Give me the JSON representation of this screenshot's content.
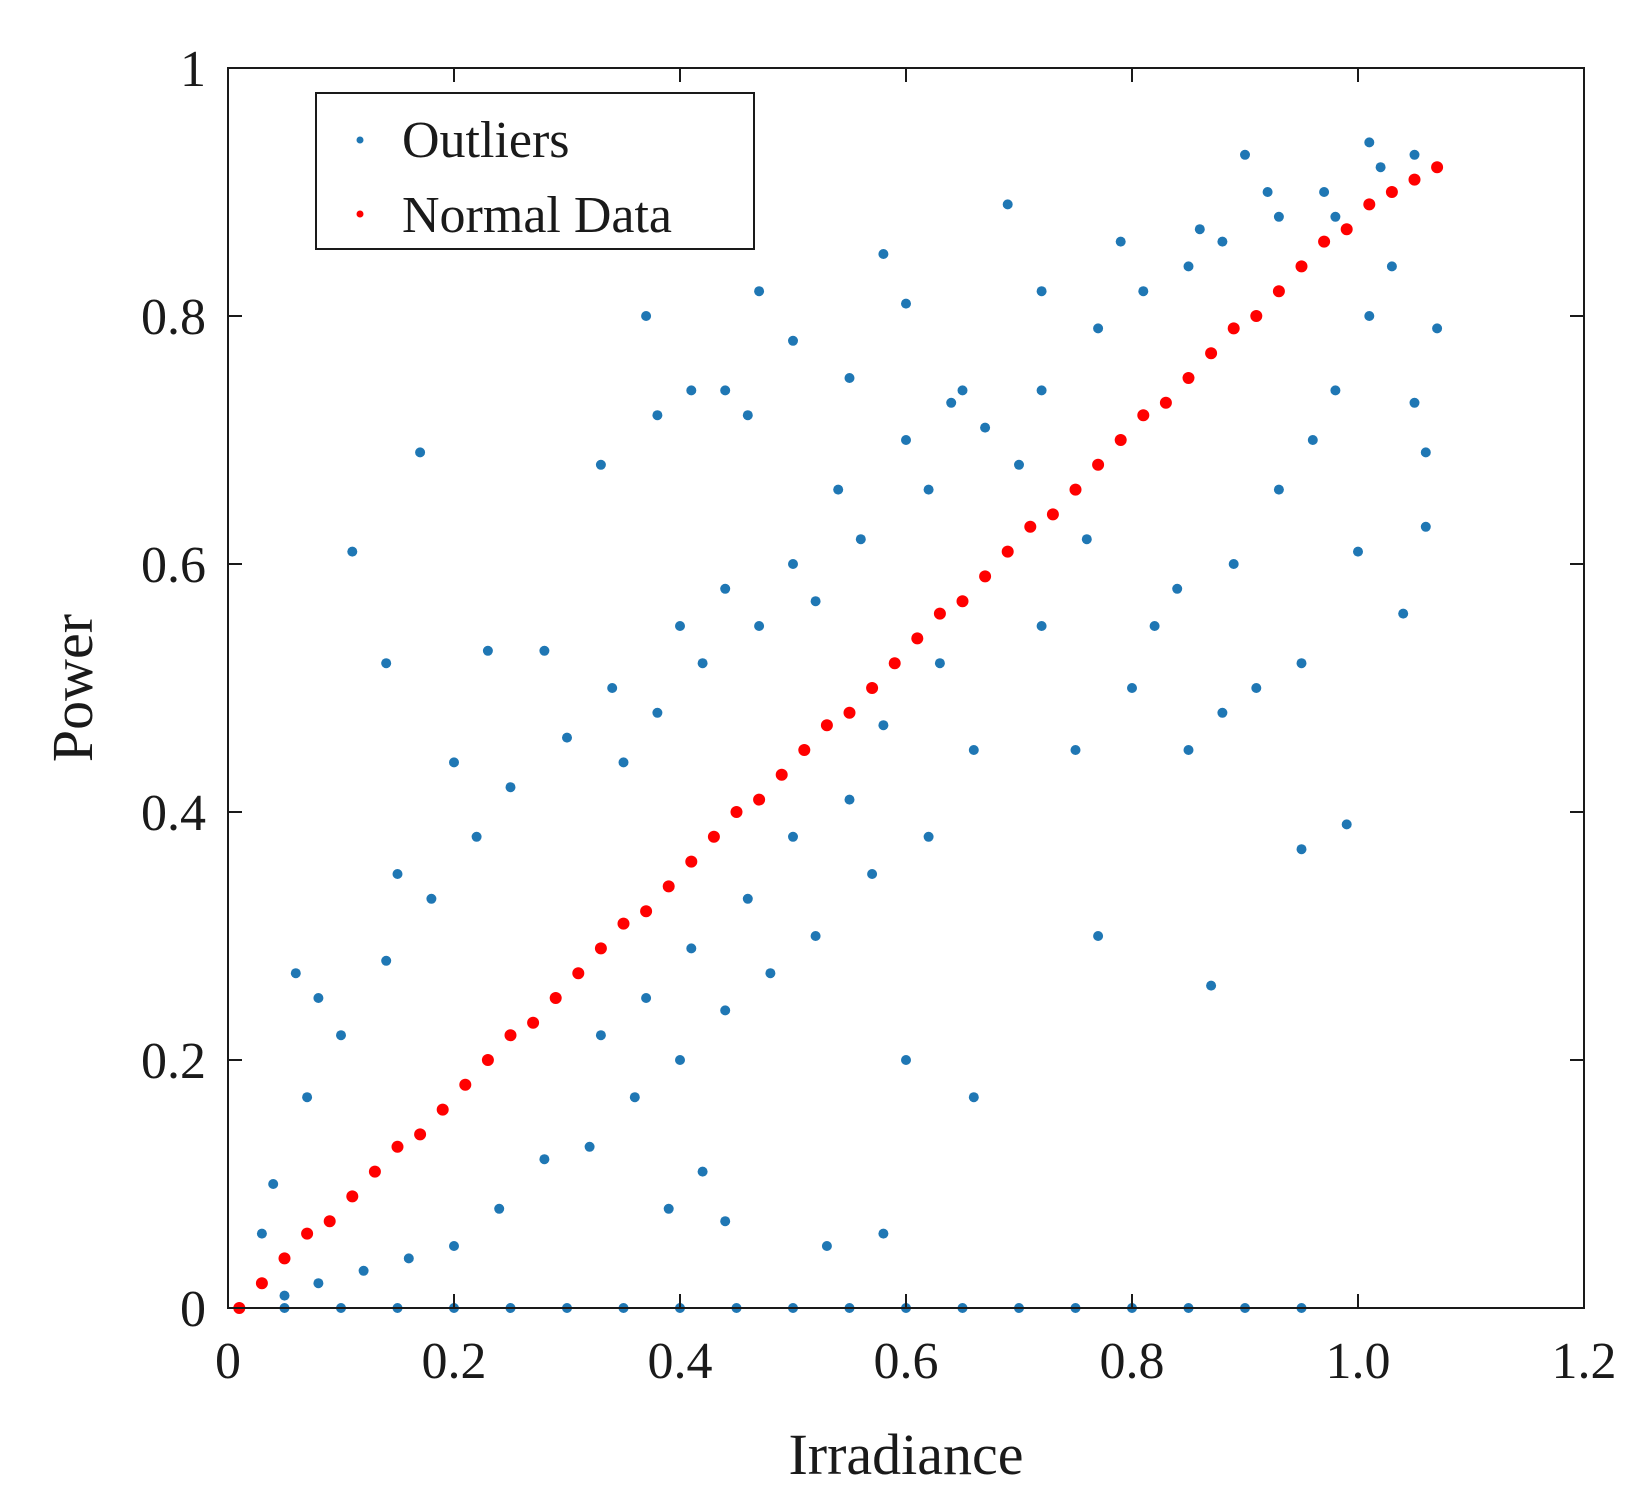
{
  "chart_data": {
    "type": "scatter",
    "title": "",
    "xlabel": "Irradiance",
    "ylabel": "Power",
    "xlim": [
      0,
      1.2
    ],
    "ylim": [
      0,
      1
    ],
    "x_ticks": [
      0,
      0.2,
      0.4,
      0.6,
      0.8,
      1.0,
      1.2
    ],
    "x_tick_labels": [
      "0",
      "0.2",
      "0.4",
      "0.6",
      "0.8",
      "1.0",
      "1.2"
    ],
    "y_ticks": [
      0,
      0.2,
      0.4,
      0.6,
      0.8,
      1
    ],
    "y_tick_labels": [
      "0",
      "0.2",
      "0.4",
      "0.6",
      "0.8",
      "1"
    ],
    "grid": false,
    "legend_position": "top-left",
    "series": [
      {
        "name": "Outliers",
        "color": "#1f77b4",
        "description_points": "points scattered around the main band plus zero-power points",
        "points": [
          [
            0.17,
            0.69
          ],
          [
            0.11,
            0.61
          ],
          [
            0.14,
            0.52
          ],
          [
            0.37,
            0.8
          ],
          [
            0.47,
            0.82
          ],
          [
            0.58,
            0.85
          ],
          [
            0.69,
            0.89
          ],
          [
            0.9,
            0.93
          ],
          [
            0.33,
            0.68
          ],
          [
            0.23,
            0.53
          ],
          [
            0.28,
            0.53
          ],
          [
            0.2,
            0.44
          ],
          [
            0.15,
            0.35
          ],
          [
            0.06,
            0.27
          ],
          [
            0.08,
            0.25
          ],
          [
            0.41,
            0.74
          ],
          [
            0.44,
            0.74
          ],
          [
            0.46,
            0.72
          ],
          [
            0.38,
            0.72
          ],
          [
            0.5,
            0.78
          ],
          [
            0.55,
            0.75
          ],
          [
            0.6,
            0.81
          ],
          [
            0.64,
            0.73
          ],
          [
            0.72,
            0.82
          ],
          [
            0.79,
            0.86
          ],
          [
            0.7,
            0.68
          ],
          [
            0.76,
            0.62
          ],
          [
            0.82,
            0.55
          ],
          [
            0.88,
            0.48
          ],
          [
            0.85,
            0.45
          ],
          [
            0.91,
            0.5
          ],
          [
            0.95,
            0.52
          ],
          [
            0.99,
            0.39
          ],
          [
            0.95,
            0.37
          ],
          [
            0.87,
            0.26
          ],
          [
            0.77,
            0.3
          ],
          [
            0.66,
            0.17
          ],
          [
            0.6,
            0.2
          ],
          [
            0.58,
            0.06
          ],
          [
            0.53,
            0.05
          ],
          [
            0.42,
            0.11
          ],
          [
            0.39,
            0.08
          ],
          [
            0.44,
            0.07
          ],
          [
            1.0,
            0.61
          ],
          [
            1.04,
            0.56
          ],
          [
            1.06,
            0.63
          ],
          [
            1.06,
            0.69
          ],
          [
            1.07,
            0.79
          ],
          [
            1.05,
            0.73
          ],
          [
            1.03,
            0.84
          ],
          [
            1.05,
            0.93
          ],
          [
            1.01,
            0.94
          ],
          [
            0.98,
            0.88
          ],
          [
            0.92,
            0.9
          ],
          [
            0.86,
            0.87
          ],
          [
            0.72,
            0.55
          ],
          [
            0.66,
            0.45
          ],
          [
            0.62,
            0.38
          ],
          [
            0.57,
            0.35
          ],
          [
            0.52,
            0.3
          ],
          [
            0.48,
            0.27
          ],
          [
            0.44,
            0.24
          ],
          [
            0.4,
            0.2
          ],
          [
            0.36,
            0.17
          ],
          [
            0.32,
            0.13
          ],
          [
            0.28,
            0.12
          ],
          [
            0.24,
            0.08
          ],
          [
            0.2,
            0.05
          ],
          [
            0.16,
            0.04
          ],
          [
            0.12,
            0.03
          ],
          [
            0.08,
            0.02
          ],
          [
            0.05,
            0.01
          ],
          [
            0.3,
            0.46
          ],
          [
            0.34,
            0.5
          ],
          [
            0.4,
            0.55
          ],
          [
            0.44,
            0.58
          ],
          [
            0.5,
            0.6
          ],
          [
            0.54,
            0.66
          ],
          [
            0.6,
            0.7
          ],
          [
            0.65,
            0.74
          ],
          [
            0.25,
            0.42
          ],
          [
            0.22,
            0.38
          ],
          [
            0.18,
            0.33
          ],
          [
            0.14,
            0.28
          ],
          [
            0.1,
            0.22
          ],
          [
            0.07,
            0.17
          ],
          [
            0.04,
            0.1
          ],
          [
            0.03,
            0.06
          ],
          [
            0.75,
            0.45
          ],
          [
            0.8,
            0.5
          ],
          [
            0.84,
            0.58
          ],
          [
            0.89,
            0.6
          ],
          [
            0.93,
            0.66
          ],
          [
            0.96,
            0.7
          ],
          [
            0.98,
            0.74
          ],
          [
            1.01,
            0.8
          ],
          [
            0.63,
            0.52
          ],
          [
            0.58,
            0.47
          ],
          [
            0.55,
            0.41
          ],
          [
            0.5,
            0.38
          ],
          [
            0.46,
            0.33
          ],
          [
            0.41,
            0.29
          ],
          [
            0.37,
            0.25
          ],
          [
            0.33,
            0.22
          ],
          [
            0.35,
            0.44
          ],
          [
            0.38,
            0.48
          ],
          [
            0.42,
            0.52
          ],
          [
            0.47,
            0.55
          ],
          [
            0.52,
            0.57
          ],
          [
            0.56,
            0.62
          ],
          [
            0.62,
            0.66
          ],
          [
            0.67,
            0.71
          ],
          [
            0.72,
            0.74
          ],
          [
            0.77,
            0.79
          ],
          [
            0.81,
            0.82
          ],
          [
            0.85,
            0.84
          ],
          [
            0.88,
            0.86
          ],
          [
            0.93,
            0.88
          ],
          [
            0.97,
            0.9
          ],
          [
            1.02,
            0.92
          ],
          [
            0.05,
            0.0
          ],
          [
            0.1,
            0.0
          ],
          [
            0.15,
            0.0
          ],
          [
            0.2,
            0.0
          ],
          [
            0.25,
            0.0
          ],
          [
            0.3,
            0.0
          ],
          [
            0.35,
            0.0
          ],
          [
            0.4,
            0.0
          ],
          [
            0.45,
            0.0
          ],
          [
            0.5,
            0.0
          ],
          [
            0.55,
            0.0
          ],
          [
            0.6,
            0.0
          ],
          [
            0.65,
            0.0
          ],
          [
            0.7,
            0.0
          ],
          [
            0.75,
            0.0
          ],
          [
            0.8,
            0.0
          ],
          [
            0.85,
            0.0
          ],
          [
            0.9,
            0.0
          ],
          [
            0.95,
            0.0
          ]
        ]
      },
      {
        "name": "Normal Data",
        "color": "#ff0000",
        "description_points": "dense linear band from (0.01, 0.0) to (1.07, 0.92)",
        "points": [
          [
            0.01,
            0.0
          ],
          [
            0.03,
            0.02
          ],
          [
            0.05,
            0.04
          ],
          [
            0.07,
            0.06
          ],
          [
            0.09,
            0.07
          ],
          [
            0.11,
            0.09
          ],
          [
            0.13,
            0.11
          ],
          [
            0.15,
            0.13
          ],
          [
            0.17,
            0.14
          ],
          [
            0.19,
            0.16
          ],
          [
            0.21,
            0.18
          ],
          [
            0.23,
            0.2
          ],
          [
            0.25,
            0.22
          ],
          [
            0.27,
            0.23
          ],
          [
            0.29,
            0.25
          ],
          [
            0.31,
            0.27
          ],
          [
            0.33,
            0.29
          ],
          [
            0.35,
            0.31
          ],
          [
            0.37,
            0.32
          ],
          [
            0.39,
            0.34
          ],
          [
            0.41,
            0.36
          ],
          [
            0.43,
            0.38
          ],
          [
            0.45,
            0.4
          ],
          [
            0.47,
            0.41
          ],
          [
            0.49,
            0.43
          ],
          [
            0.51,
            0.45
          ],
          [
            0.53,
            0.47
          ],
          [
            0.55,
            0.48
          ],
          [
            0.57,
            0.5
          ],
          [
            0.59,
            0.52
          ],
          [
            0.61,
            0.54
          ],
          [
            0.63,
            0.56
          ],
          [
            0.65,
            0.57
          ],
          [
            0.67,
            0.59
          ],
          [
            0.69,
            0.61
          ],
          [
            0.71,
            0.63
          ],
          [
            0.73,
            0.64
          ],
          [
            0.75,
            0.66
          ],
          [
            0.77,
            0.68
          ],
          [
            0.79,
            0.7
          ],
          [
            0.81,
            0.72
          ],
          [
            0.83,
            0.73
          ],
          [
            0.85,
            0.75
          ],
          [
            0.87,
            0.77
          ],
          [
            0.89,
            0.79
          ],
          [
            0.91,
            0.8
          ],
          [
            0.93,
            0.82
          ],
          [
            0.95,
            0.84
          ],
          [
            0.97,
            0.86
          ],
          [
            0.99,
            0.87
          ],
          [
            1.01,
            0.89
          ],
          [
            1.03,
            0.9
          ],
          [
            1.05,
            0.91
          ],
          [
            1.07,
            0.92
          ]
        ]
      }
    ]
  }
}
